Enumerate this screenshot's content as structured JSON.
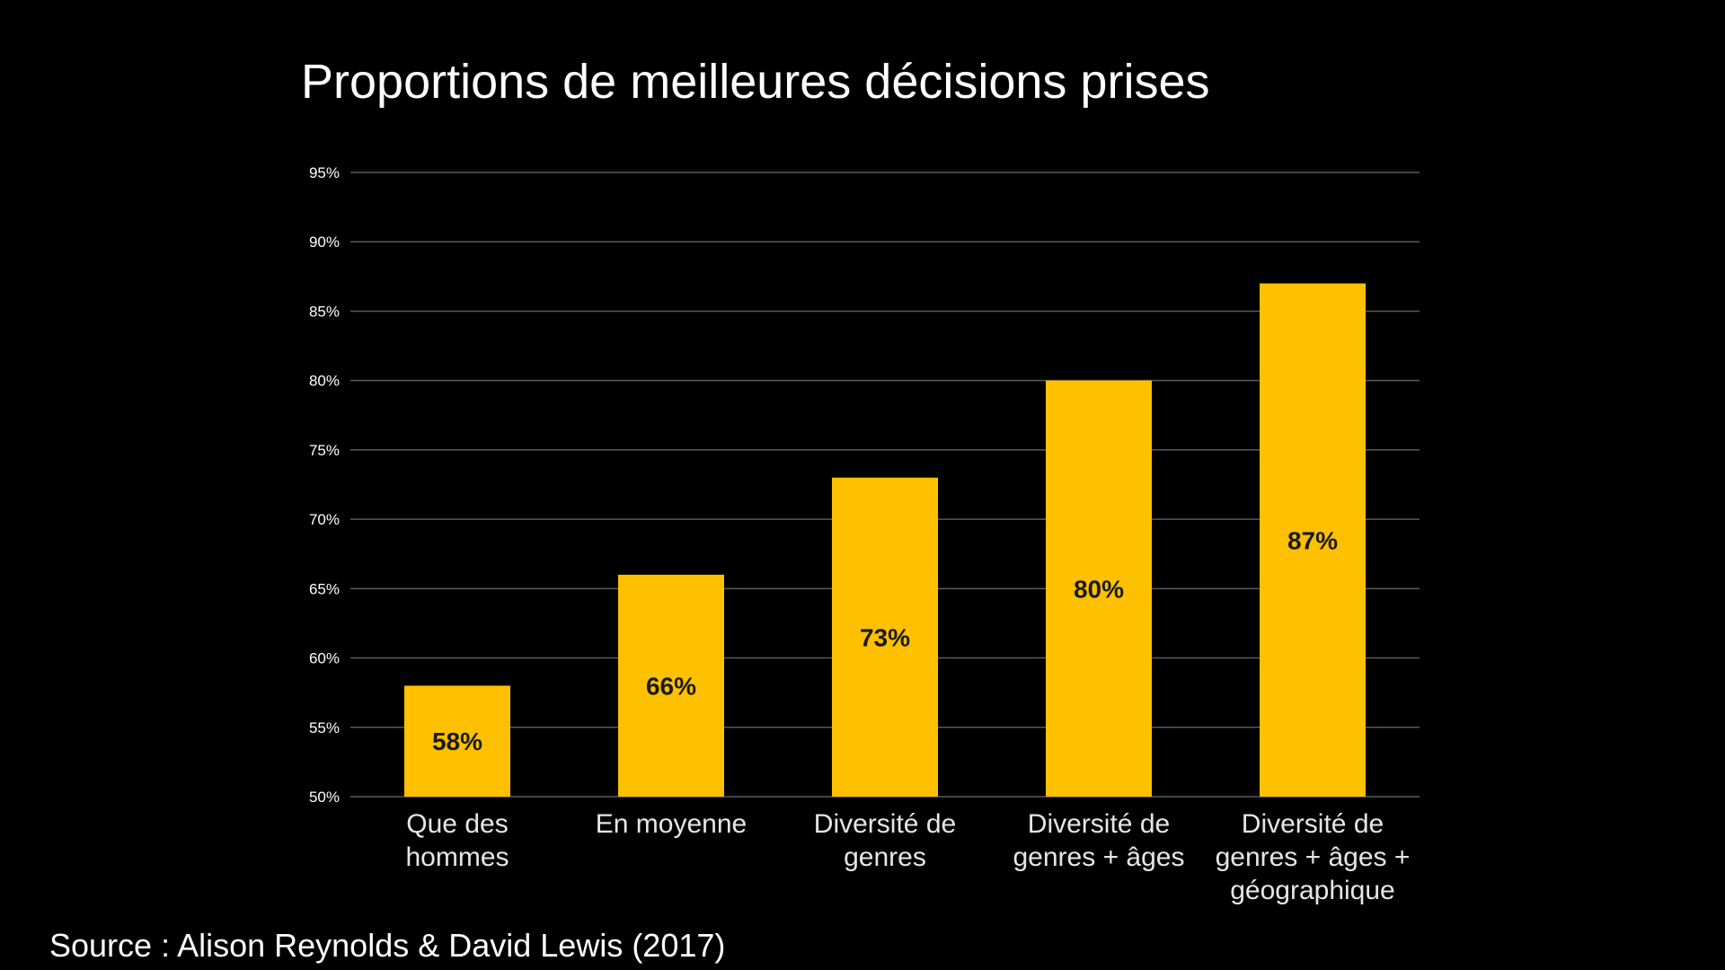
{
  "title": "Proportions de meilleures décisions prises",
  "source": "Source : Alison Reynolds & David Lewis (2017)",
  "colors": {
    "background": "#000000",
    "bar": "#FFC000",
    "grid": "#5a5a5a",
    "text": "#ffffff"
  },
  "chart_data": {
    "type": "bar",
    "title": "Proportions de meilleures décisions prises",
    "xlabel": "",
    "ylabel": "",
    "ylim": [
      50,
      95
    ],
    "yticks": [
      50,
      55,
      60,
      65,
      70,
      75,
      80,
      85,
      90,
      95
    ],
    "ytick_labels": [
      "50%",
      "55%",
      "60%",
      "65%",
      "70%",
      "75%",
      "80%",
      "85%",
      "90%",
      "95%"
    ],
    "grid": true,
    "categories": [
      [
        "Que des",
        "hommes"
      ],
      [
        "En moyenne"
      ],
      [
        "Diversité de",
        "genres"
      ],
      [
        "Diversité de",
        "genres + âges"
      ],
      [
        "Diversité de",
        "genres + âges +",
        "géographique"
      ]
    ],
    "values": [
      58,
      66,
      73,
      80,
      87
    ],
    "data_labels": [
      "58%",
      "66%",
      "73%",
      "80%",
      "87%"
    ]
  }
}
